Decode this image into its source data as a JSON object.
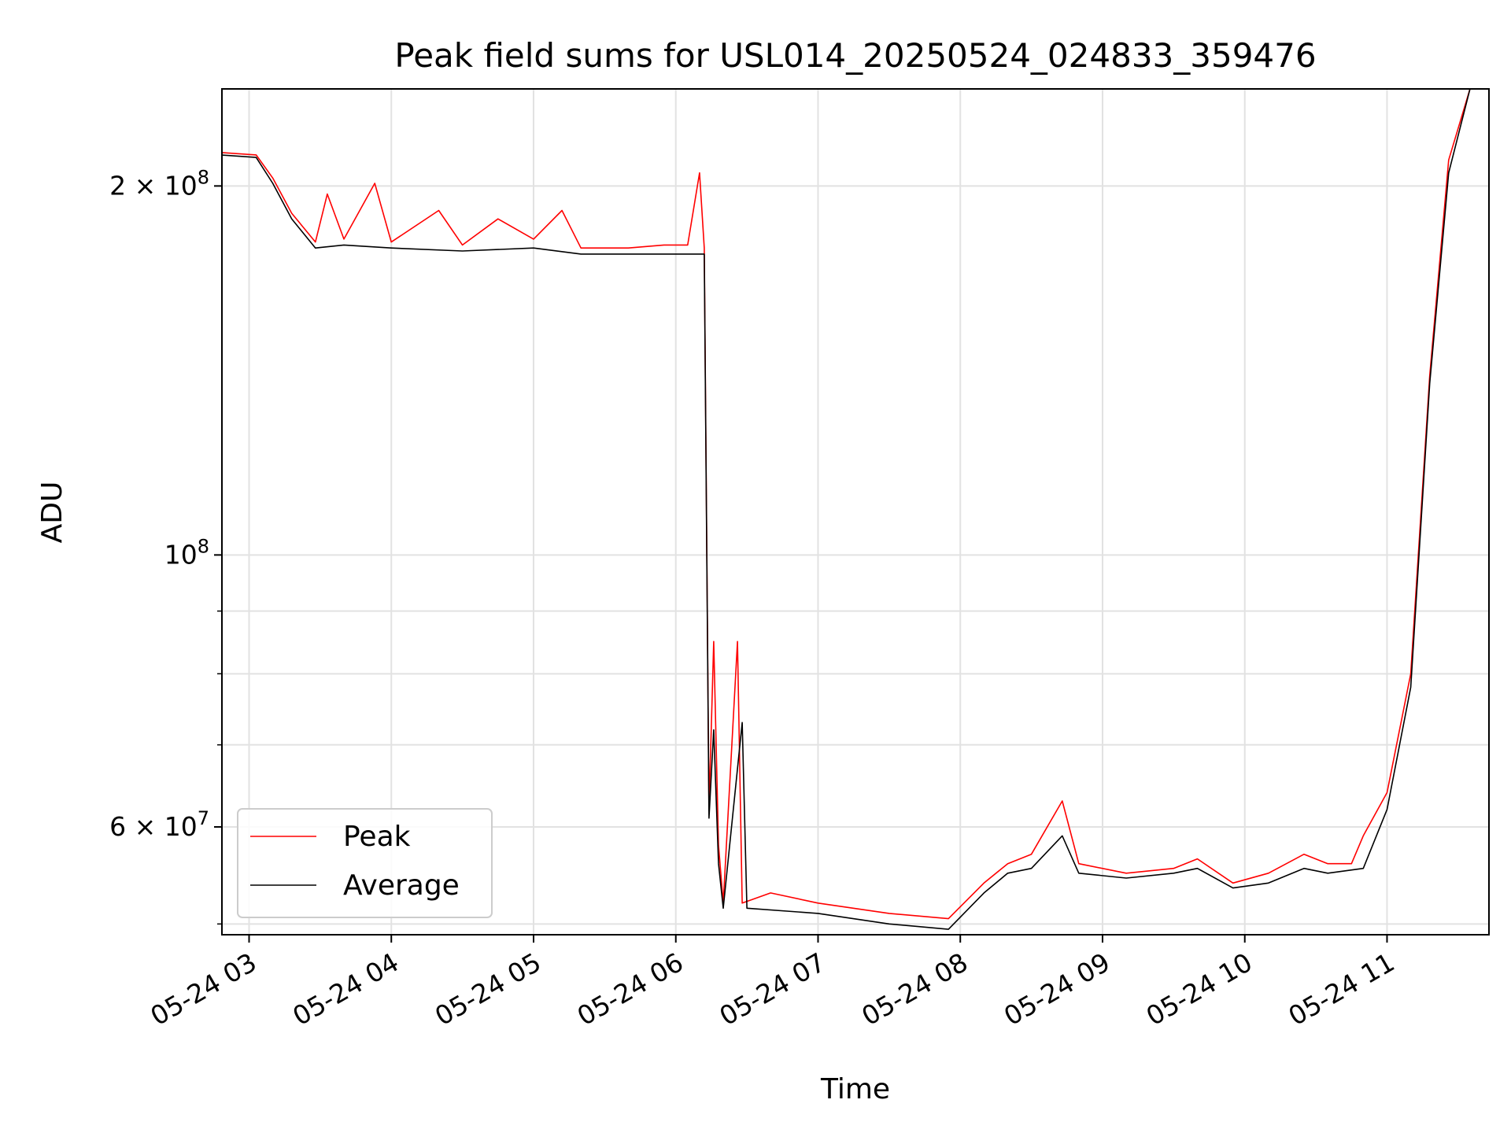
{
  "chart_data": {
    "type": "line",
    "title": "Peak field sums for USL014_20250524_024833_359476",
    "xlabel": "Time",
    "ylabel": "ADU",
    "yscale": "log",
    "grid": true,
    "legend_position": "lower-left",
    "xlim": [
      "2025-05-24 02:48:33",
      "2025-05-24 11:43:00"
    ],
    "ylim": [
      49000000,
      240000000
    ],
    "x_ticks": [
      {
        "t": "2025-05-24 03:00",
        "label": "05-24 03"
      },
      {
        "t": "2025-05-24 04:00",
        "label": "05-24 04"
      },
      {
        "t": "2025-05-24 05:00",
        "label": "05-24 05"
      },
      {
        "t": "2025-05-24 06:00",
        "label": "05-24 06"
      },
      {
        "t": "2025-05-24 07:00",
        "label": "05-24 07"
      },
      {
        "t": "2025-05-24 08:00",
        "label": "05-24 08"
      },
      {
        "t": "2025-05-24 09:00",
        "label": "05-24 09"
      },
      {
        "t": "2025-05-24 10:00",
        "label": "05-24 10"
      },
      {
        "t": "2025-05-24 11:00",
        "label": "05-24 11"
      }
    ],
    "y_major_ticks": [
      {
        "value": 60000000,
        "base": "6",
        "exp": "7"
      },
      {
        "value": 100000000,
        "base": "",
        "exp": "8"
      },
      {
        "value": 200000000,
        "base": "2",
        "exp": "8"
      }
    ],
    "y_minor_ticks": [
      50000000,
      70000000,
      80000000,
      90000000
    ],
    "series": [
      {
        "name": "Peak",
        "color": "#ff0000",
        "points": [
          [
            "2025-05-24 02:48",
            213000000
          ],
          [
            "2025-05-24 03:03",
            212000000
          ],
          [
            "2025-05-24 03:10",
            203000000
          ],
          [
            "2025-05-24 03:18",
            190000000
          ],
          [
            "2025-05-24 03:28",
            180000000
          ],
          [
            "2025-05-24 03:33",
            197000000
          ],
          [
            "2025-05-24 03:40",
            181000000
          ],
          [
            "2025-05-24 03:53",
            201000000
          ],
          [
            "2025-05-24 04:00",
            180000000
          ],
          [
            "2025-05-24 04:20",
            191000000
          ],
          [
            "2025-05-24 04:30",
            179000000
          ],
          [
            "2025-05-24 04:45",
            188000000
          ],
          [
            "2025-05-24 05:00",
            181000000
          ],
          [
            "2025-05-24 05:12",
            191000000
          ],
          [
            "2025-05-24 05:20",
            178000000
          ],
          [
            "2025-05-24 05:40",
            178000000
          ],
          [
            "2025-05-24 05:55",
            179000000
          ],
          [
            "2025-05-24 06:05",
            179000000
          ],
          [
            "2025-05-24 06:10",
            205000000
          ],
          [
            "2025-05-24 06:12",
            178000000
          ],
          [
            "2025-05-24 06:14",
            62000000
          ],
          [
            "2025-05-24 06:16",
            85000000
          ],
          [
            "2025-05-24 06:18",
            58000000
          ],
          [
            "2025-05-24 06:20",
            52000000
          ],
          [
            "2025-05-24 06:26",
            85000000
          ],
          [
            "2025-05-24 06:28",
            52000000
          ],
          [
            "2025-05-24 06:40",
            53000000
          ],
          [
            "2025-05-24 07:00",
            52000000
          ],
          [
            "2025-05-24 07:30",
            51000000
          ],
          [
            "2025-05-24 07:55",
            50500000
          ],
          [
            "2025-05-24 08:10",
            54000000
          ],
          [
            "2025-05-24 08:20",
            56000000
          ],
          [
            "2025-05-24 08:30",
            57000000
          ],
          [
            "2025-05-24 08:43",
            63000000
          ],
          [
            "2025-05-24 08:50",
            56000000
          ],
          [
            "2025-05-24 09:10",
            55000000
          ],
          [
            "2025-05-24 09:30",
            55500000
          ],
          [
            "2025-05-24 09:40",
            56500000
          ],
          [
            "2025-05-24 09:55",
            54000000
          ],
          [
            "2025-05-24 10:10",
            55000000
          ],
          [
            "2025-05-24 10:25",
            57000000
          ],
          [
            "2025-05-24 10:35",
            56000000
          ],
          [
            "2025-05-24 10:45",
            56000000
          ],
          [
            "2025-05-24 10:50",
            59000000
          ],
          [
            "2025-05-24 11:00",
            64000000
          ],
          [
            "2025-05-24 11:10",
            80000000
          ],
          [
            "2025-05-24 11:18",
            140000000
          ],
          [
            "2025-05-24 11:26",
            210000000
          ],
          [
            "2025-05-24 11:35",
            240000000
          ],
          [
            "2025-05-24 11:43",
            240000000
          ]
        ]
      },
      {
        "name": "Average",
        "color": "#000000",
        "points": [
          [
            "2025-05-24 02:48",
            212000000
          ],
          [
            "2025-05-24 03:03",
            211000000
          ],
          [
            "2025-05-24 03:10",
            201000000
          ],
          [
            "2025-05-24 03:18",
            188000000
          ],
          [
            "2025-05-24 03:28",
            178000000
          ],
          [
            "2025-05-24 03:40",
            179000000
          ],
          [
            "2025-05-24 04:00",
            178000000
          ],
          [
            "2025-05-24 04:30",
            177000000
          ],
          [
            "2025-05-24 05:00",
            178000000
          ],
          [
            "2025-05-24 05:20",
            176000000
          ],
          [
            "2025-05-24 05:40",
            176000000
          ],
          [
            "2025-05-24 06:05",
            176000000
          ],
          [
            "2025-05-24 06:12",
            176000000
          ],
          [
            "2025-05-24 06:14",
            61000000
          ],
          [
            "2025-05-24 06:16",
            72000000
          ],
          [
            "2025-05-24 06:18",
            56000000
          ],
          [
            "2025-05-24 06:20",
            51500000
          ],
          [
            "2025-05-24 06:28",
            73000000
          ],
          [
            "2025-05-24 06:30",
            51500000
          ],
          [
            "2025-05-24 07:00",
            51000000
          ],
          [
            "2025-05-24 07:30",
            50000000
          ],
          [
            "2025-05-24 07:55",
            49500000
          ],
          [
            "2025-05-24 08:10",
            53000000
          ],
          [
            "2025-05-24 08:20",
            55000000
          ],
          [
            "2025-05-24 08:30",
            55500000
          ],
          [
            "2025-05-24 08:43",
            59000000
          ],
          [
            "2025-05-24 08:50",
            55000000
          ],
          [
            "2025-05-24 09:10",
            54500000
          ],
          [
            "2025-05-24 09:30",
            55000000
          ],
          [
            "2025-05-24 09:40",
            55500000
          ],
          [
            "2025-05-24 09:55",
            53500000
          ],
          [
            "2025-05-24 10:10",
            54000000
          ],
          [
            "2025-05-24 10:25",
            55500000
          ],
          [
            "2025-05-24 10:35",
            55000000
          ],
          [
            "2025-05-24 10:50",
            55500000
          ],
          [
            "2025-05-24 11:00",
            62000000
          ],
          [
            "2025-05-24 11:10",
            78000000
          ],
          [
            "2025-05-24 11:18",
            138000000
          ],
          [
            "2025-05-24 11:26",
            205000000
          ],
          [
            "2025-05-24 11:35",
            240000000
          ],
          [
            "2025-05-24 11:43",
            240000000
          ]
        ]
      }
    ]
  }
}
